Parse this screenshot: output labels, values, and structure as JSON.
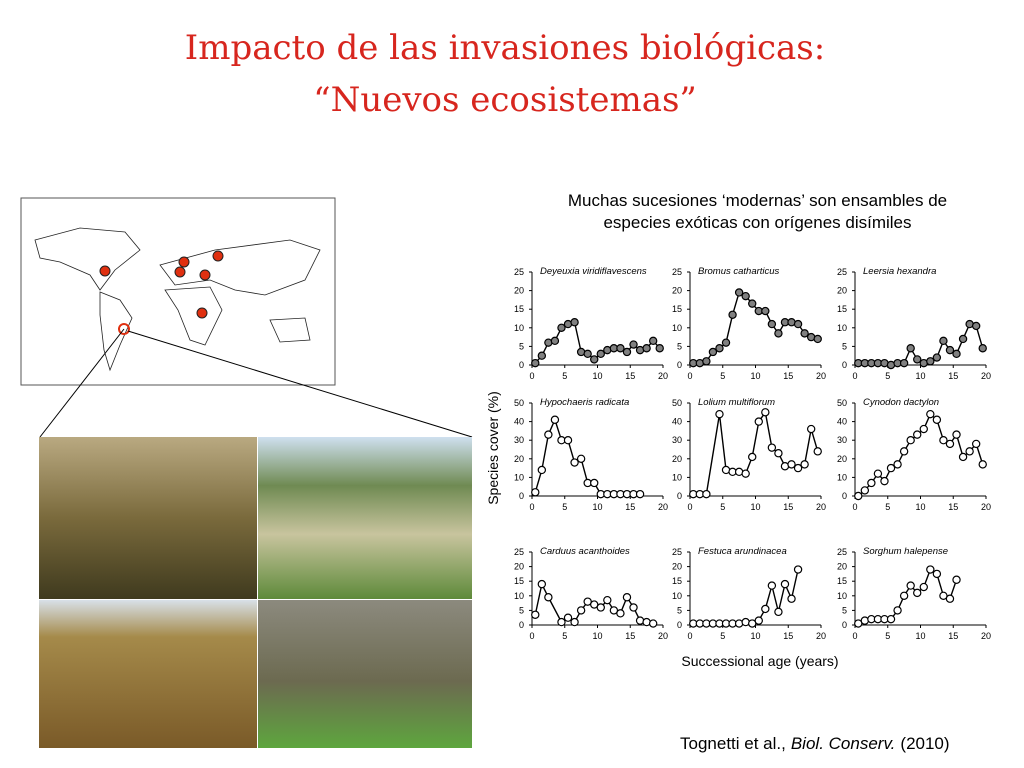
{
  "title_line1": "Impacto de las invasiones biológicas:",
  "title_line2": "“Nuevos ecosistemas”",
  "subtitle_line1": "Muchas sucesiones ‘modernas’ son ensambles de",
  "subtitle_line2": "especies exóticas con orígenes disímiles",
  "y_axis_label": "Species cover (%)",
  "x_axis_label": "Successional age (years)",
  "citation": {
    "authors": "Tognetti et al.,",
    "journal": "Biol. Conserv.",
    "year": "(2010)"
  },
  "chart_data": [
    {
      "type": "line",
      "title": "Deyeuxia viridiflavescens",
      "marker_fill": "#808080",
      "xlim": [
        0,
        20
      ],
      "ylim": [
        0,
        25
      ],
      "xticks": [
        0,
        5,
        10,
        15,
        20
      ],
      "yticks": [
        0,
        5,
        10,
        15,
        20,
        25
      ],
      "x": [
        0.5,
        1.5,
        2.5,
        3.5,
        4.5,
        5.5,
        6.5,
        7.5,
        8.5,
        9.5,
        10.5,
        11.5,
        12.5,
        13.5,
        14.5,
        15.5,
        16.5,
        17.5,
        18.5,
        19.5
      ],
      "values": [
        0.5,
        2.5,
        6,
        6.5,
        10,
        11,
        11.5,
        3.5,
        3,
        1.5,
        3,
        4,
        4.5,
        4.5,
        3.5,
        5.5,
        4,
        4.5,
        6.5,
        4.5
      ]
    },
    {
      "type": "line",
      "title": "Bromus catharticus",
      "marker_fill": "#808080",
      "xlim": [
        0,
        20
      ],
      "ylim": [
        0,
        25
      ],
      "xticks": [
        0,
        5,
        10,
        15,
        20
      ],
      "yticks": [
        0,
        5,
        10,
        15,
        20,
        25
      ],
      "x": [
        0.5,
        1.5,
        2.5,
        3.5,
        4.5,
        5.5,
        6.5,
        7.5,
        8.5,
        9.5,
        10.5,
        11.5,
        12.5,
        13.5,
        14.5,
        15.5,
        16.5,
        17.5,
        18.5,
        19.5
      ],
      "values": [
        0.5,
        0.5,
        1,
        3.5,
        4.5,
        6,
        13.5,
        19.5,
        18.5,
        16.5,
        14.5,
        14.5,
        11,
        8.5,
        11.5,
        11.5,
        11,
        8.5,
        7.5,
        7
      ]
    },
    {
      "type": "line",
      "title": "Leersia hexandra",
      "marker_fill": "#808080",
      "xlim": [
        0,
        20
      ],
      "ylim": [
        0,
        25
      ],
      "xticks": [
        0,
        5,
        10,
        15,
        20
      ],
      "yticks": [
        0,
        5,
        10,
        15,
        20,
        25
      ],
      "x": [
        0.5,
        1.5,
        2.5,
        3.5,
        4.5,
        5.5,
        6.5,
        7.5,
        8.5,
        9.5,
        10.5,
        11.5,
        12.5,
        13.5,
        14.5,
        15.5,
        16.5,
        17.5,
        18.5,
        19.5
      ],
      "values": [
        0.5,
        0.5,
        0.5,
        0.5,
        0.5,
        0,
        0.5,
        0.5,
        4.5,
        1.5,
        0.5,
        1,
        2,
        6.5,
        4,
        3,
        7,
        11,
        10.5,
        4.5
      ]
    },
    {
      "type": "line",
      "title": "Hypochaeris radicata",
      "marker_fill": "#ffffff",
      "xlim": [
        0,
        20
      ],
      "ylim": [
        0,
        50
      ],
      "xticks": [
        0,
        5,
        10,
        15,
        20
      ],
      "yticks": [
        0,
        10,
        20,
        30,
        40,
        50
      ],
      "x": [
        0.5,
        1.5,
        2.5,
        3.5,
        4.5,
        5.5,
        6.5,
        7.5,
        8.5,
        9.5,
        10.5,
        11.5,
        12.5,
        13.5,
        14.5,
        15.5,
        16.5
      ],
      "values": [
        2,
        14,
        33,
        41,
        30,
        30,
        18,
        20,
        7,
        7,
        1,
        1,
        1,
        1,
        1,
        1,
        1
      ]
    },
    {
      "type": "line",
      "title": "Lolium multiflorum",
      "marker_fill": "#ffffff",
      "xlim": [
        0,
        20
      ],
      "ylim": [
        0,
        50
      ],
      "xticks": [
        0,
        5,
        10,
        15,
        20
      ],
      "yticks": [
        0,
        10,
        20,
        30,
        40,
        50
      ],
      "x": [
        0.5,
        1.5,
        2.5,
        4.5,
        5.5,
        6.5,
        7.5,
        8.5,
        9.5,
        10.5,
        11.5,
        12.5,
        13.5,
        14.5,
        15.5,
        16.5,
        17.5,
        18.5,
        19.5
      ],
      "values": [
        1,
        1,
        1,
        44,
        14,
        13,
        13,
        12,
        21,
        40,
        45,
        26,
        23,
        16,
        17,
        15,
        17,
        36,
        24
      ]
    },
    {
      "type": "line",
      "title": "Cynodon dactylon",
      "marker_fill": "#ffffff",
      "xlim": [
        0,
        20
      ],
      "ylim": [
        0,
        50
      ],
      "xticks": [
        0,
        5,
        10,
        15,
        20
      ],
      "yticks": [
        0,
        10,
        20,
        30,
        40,
        50
      ],
      "x": [
        0.5,
        1.5,
        2.5,
        3.5,
        4.5,
        5.5,
        6.5,
        7.5,
        8.5,
        9.5,
        10.5,
        11.5,
        12.5,
        13.5,
        14.5,
        15.5,
        16.5,
        17.5,
        18.5,
        19.5
      ],
      "values": [
        0,
        3,
        7,
        12,
        8,
        15,
        17,
        24,
        30,
        33,
        36,
        44,
        41,
        30,
        28,
        33,
        21,
        24,
        28,
        17
      ]
    },
    {
      "type": "line",
      "title": "Carduus acanthoides",
      "marker_fill": "#ffffff",
      "xlim": [
        0,
        20
      ],
      "ylim": [
        0,
        25
      ],
      "xticks": [
        0,
        5,
        10,
        15,
        20
      ],
      "yticks": [
        0,
        5,
        10,
        15,
        20,
        25
      ],
      "x": [
        0.5,
        1.5,
        2.5,
        4.5,
        5.5,
        6.5,
        7.5,
        8.5,
        9.5,
        10.5,
        11.5,
        12.5,
        13.5,
        14.5,
        15.5,
        16.5,
        17.5,
        18.5
      ],
      "values": [
        3.5,
        14,
        9.5,
        1,
        2.5,
        1,
        5,
        8,
        7,
        6,
        8.5,
        5,
        4,
        9.5,
        6,
        1.5,
        1,
        0.5
      ]
    },
    {
      "type": "line",
      "title": "Festuca arundinacea",
      "marker_fill": "#ffffff",
      "xlim": [
        0,
        20
      ],
      "ylim": [
        0,
        25
      ],
      "xticks": [
        0,
        5,
        10,
        15,
        20
      ],
      "yticks": [
        0,
        5,
        10,
        15,
        20,
        25
      ],
      "x": [
        0.5,
        1.5,
        2.5,
        3.5,
        4.5,
        5.5,
        6.5,
        7.5,
        8.5,
        9.5,
        10.5,
        11.5,
        12.5,
        13.5,
        14.5,
        15.5,
        16.5
      ],
      "values": [
        0.5,
        0.5,
        0.5,
        0.5,
        0.5,
        0.5,
        0.5,
        0.5,
        1,
        0.5,
        1.5,
        5.5,
        13.5,
        4.5,
        14,
        9,
        19
      ]
    },
    {
      "type": "line",
      "title": "Sorghum halepense",
      "marker_fill": "#ffffff",
      "xlim": [
        0,
        20
      ],
      "ylim": [
        0,
        25
      ],
      "xticks": [
        0,
        5,
        10,
        15,
        20
      ],
      "yticks": [
        0,
        5,
        10,
        15,
        20,
        25
      ],
      "x": [
        0.5,
        1.5,
        2.5,
        3.5,
        4.5,
        5.5,
        6.5,
        7.5,
        8.5,
        9.5,
        10.5,
        11.5,
        12.5,
        13.5,
        14.5,
        15.5
      ],
      "values": [
        0.5,
        1.5,
        2,
        2,
        2,
        2,
        5,
        10,
        13.5,
        11,
        13,
        19,
        17.5,
        10,
        9,
        15.5
      ]
    }
  ]
}
